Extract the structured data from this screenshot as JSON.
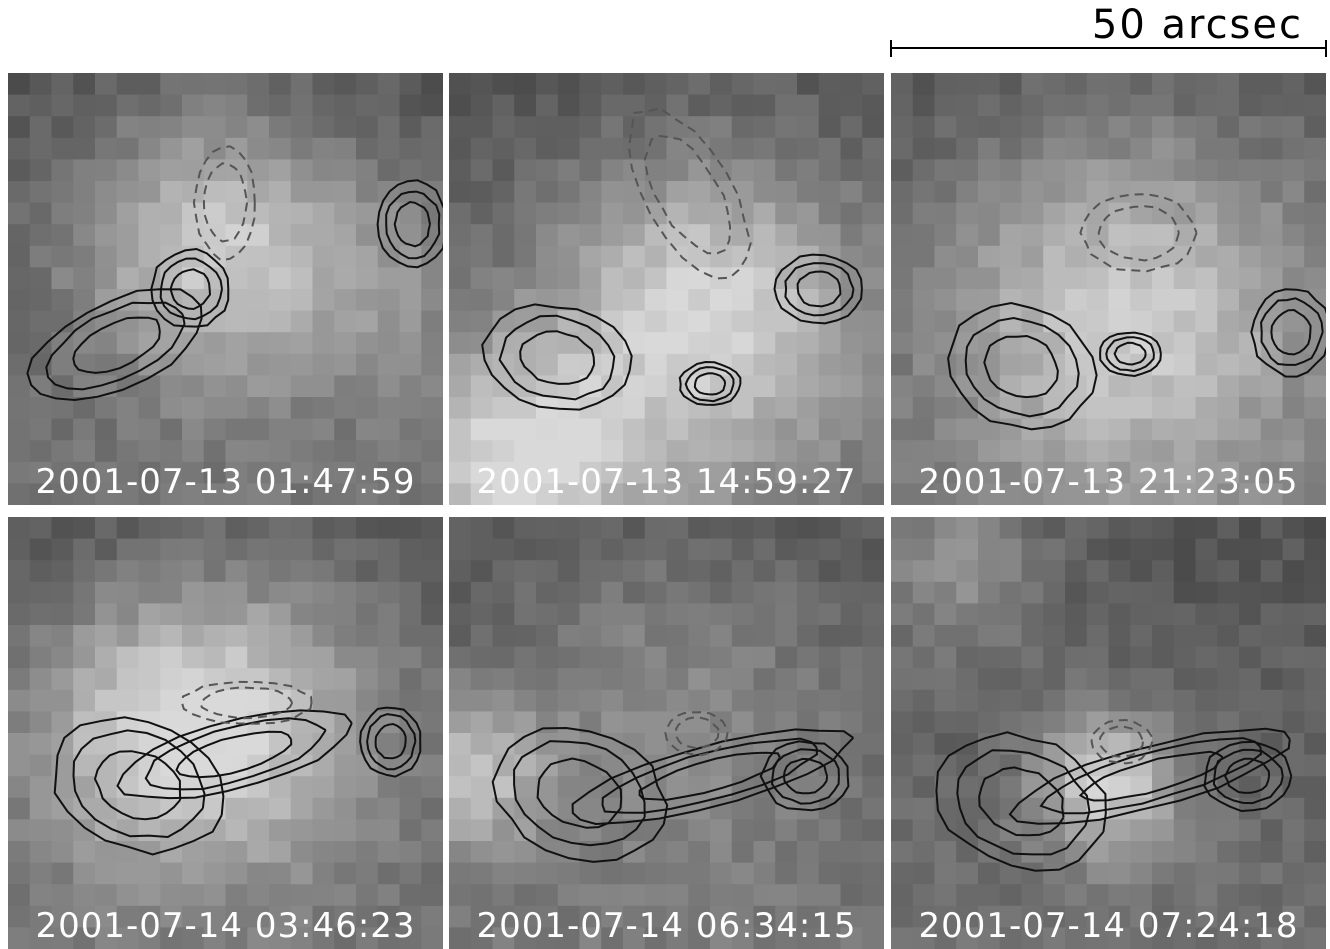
{
  "scale_bar": {
    "label": "50 arcsec"
  },
  "panels": [
    {
      "timestamp": "2001-07-13 01:47:59"
    },
    {
      "timestamp": "2001-07-13 14:59:27"
    },
    {
      "timestamp": "2001-07-13 21:23:05"
    },
    {
      "timestamp": "2001-07-14 03:46:23"
    },
    {
      "timestamp": "2001-07-14 06:34:15"
    },
    {
      "timestamp": "2001-07-14 07:24:18"
    }
  ]
}
